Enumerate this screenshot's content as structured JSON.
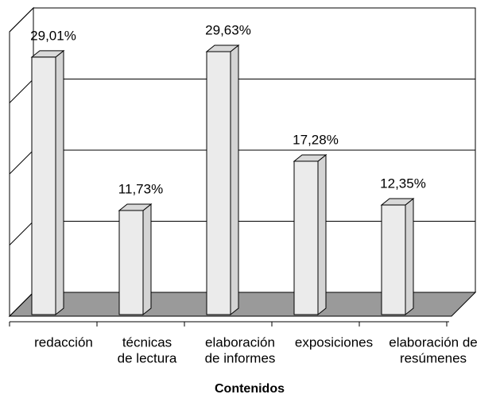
{
  "chart_data": {
    "type": "bar3d",
    "categories": [
      [
        "redacción"
      ],
      [
        "técnicas",
        "de lectura"
      ],
      [
        "elaboración",
        "de informes"
      ],
      [
        "exposiciones"
      ],
      [
        "elaboración de",
        "resúmenes"
      ]
    ],
    "values": [
      29.01,
      11.73,
      29.63,
      17.28,
      12.35
    ],
    "value_labels": [
      "29,01%",
      "11,73%",
      "29,63%",
      "17,28%",
      "12,35%"
    ],
    "color": "#ebebeb",
    "xlabel": "Contenidos",
    "ylim": [
      0,
      35
    ],
    "yticks": [
      0,
      8.75,
      17.5,
      26.25,
      35
    ],
    "grid": true
  }
}
